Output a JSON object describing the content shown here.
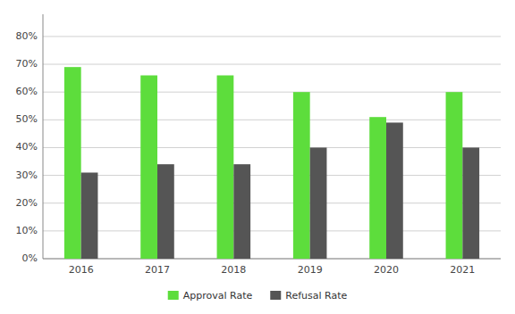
{
  "chart_data": {
    "type": "bar",
    "categories": [
      "2016",
      "2017",
      "2018",
      "2019",
      "2020",
      "2021"
    ],
    "series": [
      {
        "name": "Approval Rate",
        "color": "#5ddd3c",
        "values": [
          0.69,
          0.66,
          0.66,
          0.6,
          0.51,
          0.6
        ]
      },
      {
        "name": "Refusal Rate",
        "color": "#555555",
        "values": [
          0.31,
          0.34,
          0.34,
          0.4,
          0.49,
          0.4
        ]
      }
    ],
    "ylim": [
      0,
      0.88
    ],
    "yticks": [
      {
        "value": 0.0,
        "label": "0%"
      },
      {
        "value": 0.1,
        "label": "10%"
      },
      {
        "value": 0.2,
        "label": "20%"
      },
      {
        "value": 0.3,
        "label": "30%"
      },
      {
        "value": 0.4,
        "label": "40%"
      },
      {
        "value": 0.5,
        "label": "50%"
      },
      {
        "value": 0.6,
        "label": "60%"
      },
      {
        "value": 0.7,
        "label": "70%"
      },
      {
        "value": 0.8,
        "label": "80%"
      }
    ],
    "grid": true,
    "legend": "bottom"
  }
}
